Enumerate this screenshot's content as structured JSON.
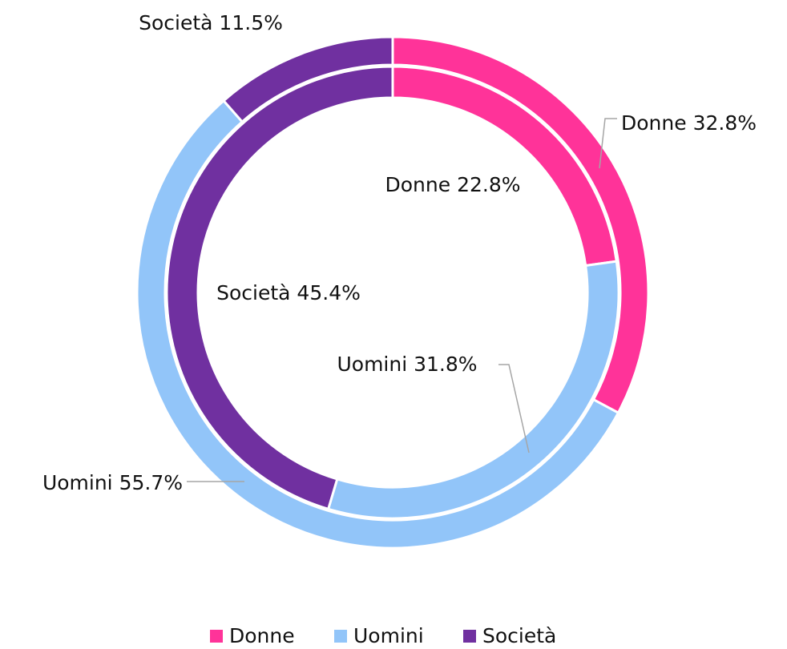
{
  "chart_data": {
    "type": "donut",
    "categories": [
      "Donne",
      "Uomini",
      "Società"
    ],
    "colors": [
      "#ff3399",
      "#92c5f9",
      "#7030a0"
    ],
    "series": [
      {
        "values": [
          32.8,
          55.7,
          11.5
        ],
        "value_labels": [
          "Donne 32.8%",
          "Uomini 55.7%",
          "Società 11.5%"
        ]
      },
      {
        "values": [
          22.8,
          31.8,
          45.4
        ],
        "value_labels": [
          "Donne 22.8%",
          "Uomini 31.8%",
          "Società 45.4%"
        ]
      }
    ],
    "legend": "bottom"
  }
}
